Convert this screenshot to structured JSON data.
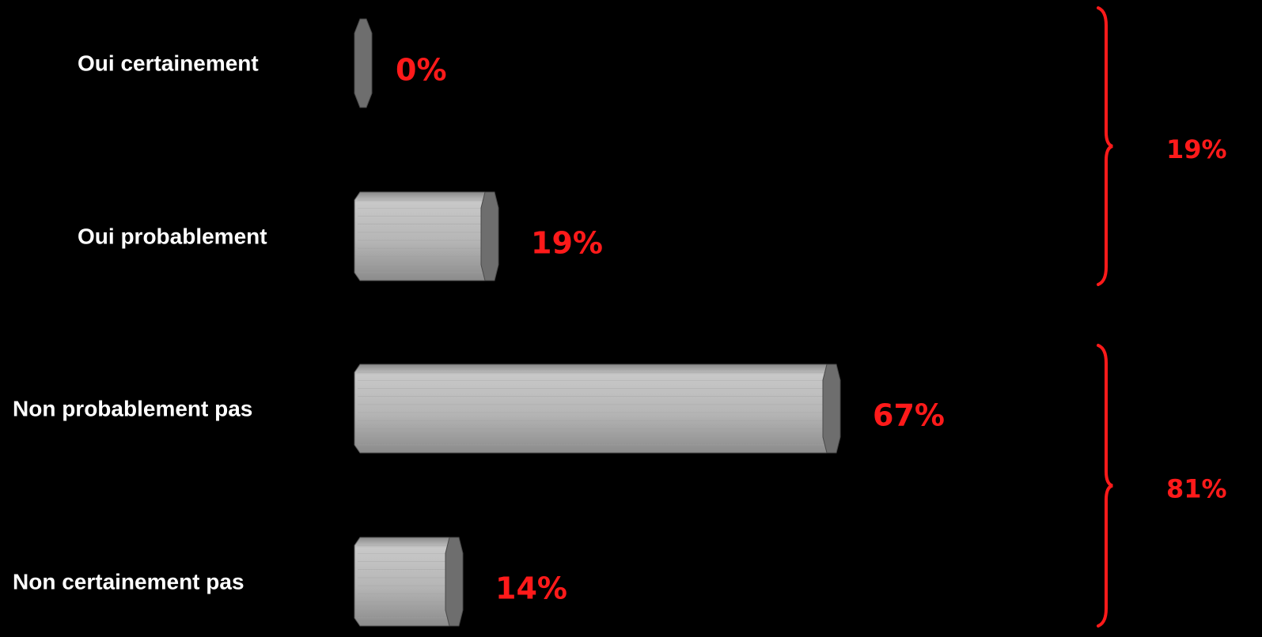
{
  "chart_data": {
    "type": "bar",
    "orientation": "horizontal",
    "categories": [
      "Oui certainement",
      "Oui probablement",
      "Non probablement pas",
      "Non certainement pas"
    ],
    "values": [
      0,
      19,
      67,
      14
    ],
    "value_labels": [
      "0%",
      "19%",
      "67%",
      "14%"
    ],
    "xlim": [
      0,
      100
    ],
    "grid": false,
    "groups": [
      {
        "members": [
          "Oui certainement",
          "Oui probablement"
        ],
        "total": 19,
        "label": "19%"
      },
      {
        "members": [
          "Non probablement pas",
          "Non certainement pas"
        ],
        "total": 81,
        "label": "81%"
      }
    ]
  },
  "colors": {
    "background": "#000000",
    "category_text": "#ffffff",
    "accent": "#ff1a1a",
    "bar_light": "#b4b4b4",
    "bar_dark": "#6e6e6e"
  }
}
